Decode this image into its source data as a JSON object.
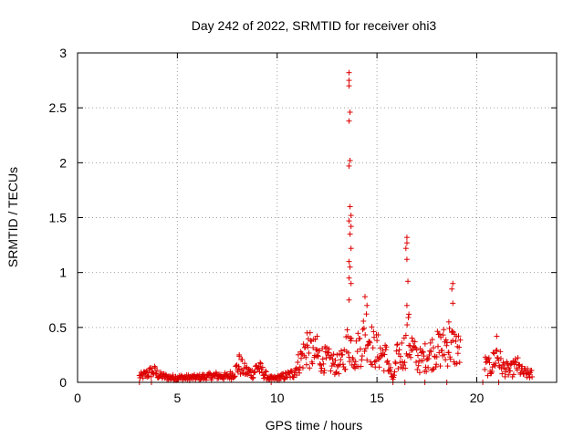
{
  "chart_data": {
    "type": "scatter",
    "title": "Day 242 of 2022, SRMTID for receiver ohi3",
    "xlabel": "GPS time / hours",
    "ylabel": "SRMTID / TECUs",
    "xlim": [
      0,
      24
    ],
    "ylim": [
      0,
      3
    ],
    "xticks": [
      0,
      5,
      10,
      15,
      20
    ],
    "yticks": [
      0,
      0.5,
      1,
      1.5,
      2,
      2.5,
      3
    ],
    "ytick_labels": [
      "0",
      "0.5",
      "1",
      "1.5",
      "2",
      "2.5",
      "3"
    ],
    "grid": true,
    "marker": "+",
    "series": [
      {
        "name": "SRMTID",
        "color": "#dd0000",
        "profile": [
          [
            3.1,
            0.06
          ],
          [
            3.4,
            0.08
          ],
          [
            3.8,
            0.12
          ],
          [
            4.1,
            0.07
          ],
          [
            4.6,
            0.05
          ],
          [
            5.0,
            0.05
          ],
          [
            5.5,
            0.05
          ],
          [
            6.0,
            0.05
          ],
          [
            6.5,
            0.06
          ],
          [
            7.0,
            0.07
          ],
          [
            7.5,
            0.06
          ],
          [
            7.8,
            0.09
          ],
          [
            8.1,
            0.18
          ],
          [
            8.4,
            0.12
          ],
          [
            8.8,
            0.09
          ],
          [
            9.0,
            0.17
          ],
          [
            9.3,
            0.1
          ],
          [
            9.6,
            0.04
          ],
          [
            9.9,
            0.04
          ],
          [
            10.3,
            0.06
          ],
          [
            10.8,
            0.09
          ],
          [
            11.2,
            0.25
          ],
          [
            11.5,
            0.35
          ],
          [
            11.8,
            0.3
          ],
          [
            12.2,
            0.25
          ],
          [
            12.6,
            0.22
          ],
          [
            13.0,
            0.18
          ],
          [
            13.3,
            0.22
          ],
          [
            13.6,
            0.45
          ],
          [
            13.9,
            0.28
          ],
          [
            14.2,
            0.4
          ],
          [
            14.5,
            0.55
          ],
          [
            14.8,
            0.35
          ],
          [
            15.2,
            0.3
          ],
          [
            15.5,
            0.25
          ],
          [
            15.8,
            0.02
          ],
          [
            16.0,
            0.25
          ],
          [
            16.3,
            0.3
          ],
          [
            16.6,
            0.45
          ],
          [
            16.9,
            0.28
          ],
          [
            17.2,
            0.22
          ],
          [
            17.5,
            0.28
          ],
          [
            17.8,
            0.32
          ],
          [
            18.2,
            0.35
          ],
          [
            18.6,
            0.4
          ],
          [
            19.0,
            0.35
          ],
          [
            19.2,
            0.3
          ],
          [
            20.4,
            0.18
          ],
          [
            20.7,
            0.15
          ],
          [
            21.0,
            0.3
          ],
          [
            21.3,
            0.15
          ],
          [
            21.7,
            0.12
          ],
          [
            22.0,
            0.18
          ],
          [
            22.3,
            0.1
          ],
          [
            22.8,
            0.08
          ]
        ],
        "spikes": [
          [
            13.6,
            2.82
          ],
          [
            13.6,
            2.75
          ],
          [
            13.6,
            2.7
          ],
          [
            13.65,
            2.46
          ],
          [
            13.6,
            2.38
          ],
          [
            13.65,
            2.02
          ],
          [
            13.6,
            1.97
          ],
          [
            13.65,
            1.6
          ],
          [
            13.7,
            1.52
          ],
          [
            13.6,
            1.47
          ],
          [
            13.7,
            1.42
          ],
          [
            13.65,
            1.35
          ],
          [
            13.7,
            1.22
          ],
          [
            13.6,
            1.1
          ],
          [
            13.65,
            1.05
          ],
          [
            13.6,
            0.95
          ],
          [
            13.7,
            0.9
          ],
          [
            13.6,
            0.75
          ],
          [
            14.4,
            0.78
          ],
          [
            14.5,
            0.7
          ],
          [
            16.5,
            1.32
          ],
          [
            16.5,
            1.27
          ],
          [
            16.45,
            1.22
          ],
          [
            16.5,
            1.12
          ],
          [
            16.55,
            0.92
          ],
          [
            16.5,
            0.7
          ],
          [
            16.6,
            0.62
          ],
          [
            18.8,
            0.9
          ],
          [
            18.75,
            0.85
          ],
          [
            18.8,
            0.72
          ],
          [
            18.6,
            0.55
          ],
          [
            21.0,
            0.42
          ],
          [
            11.5,
            0.45
          ],
          [
            12.0,
            0.42
          ],
          [
            8.1,
            0.25
          ]
        ],
        "zeros": [
          3.1,
          3.7,
          9.7,
          15.8,
          16.4,
          17.4,
          18.5,
          20.3,
          21.1
        ]
      }
    ]
  }
}
